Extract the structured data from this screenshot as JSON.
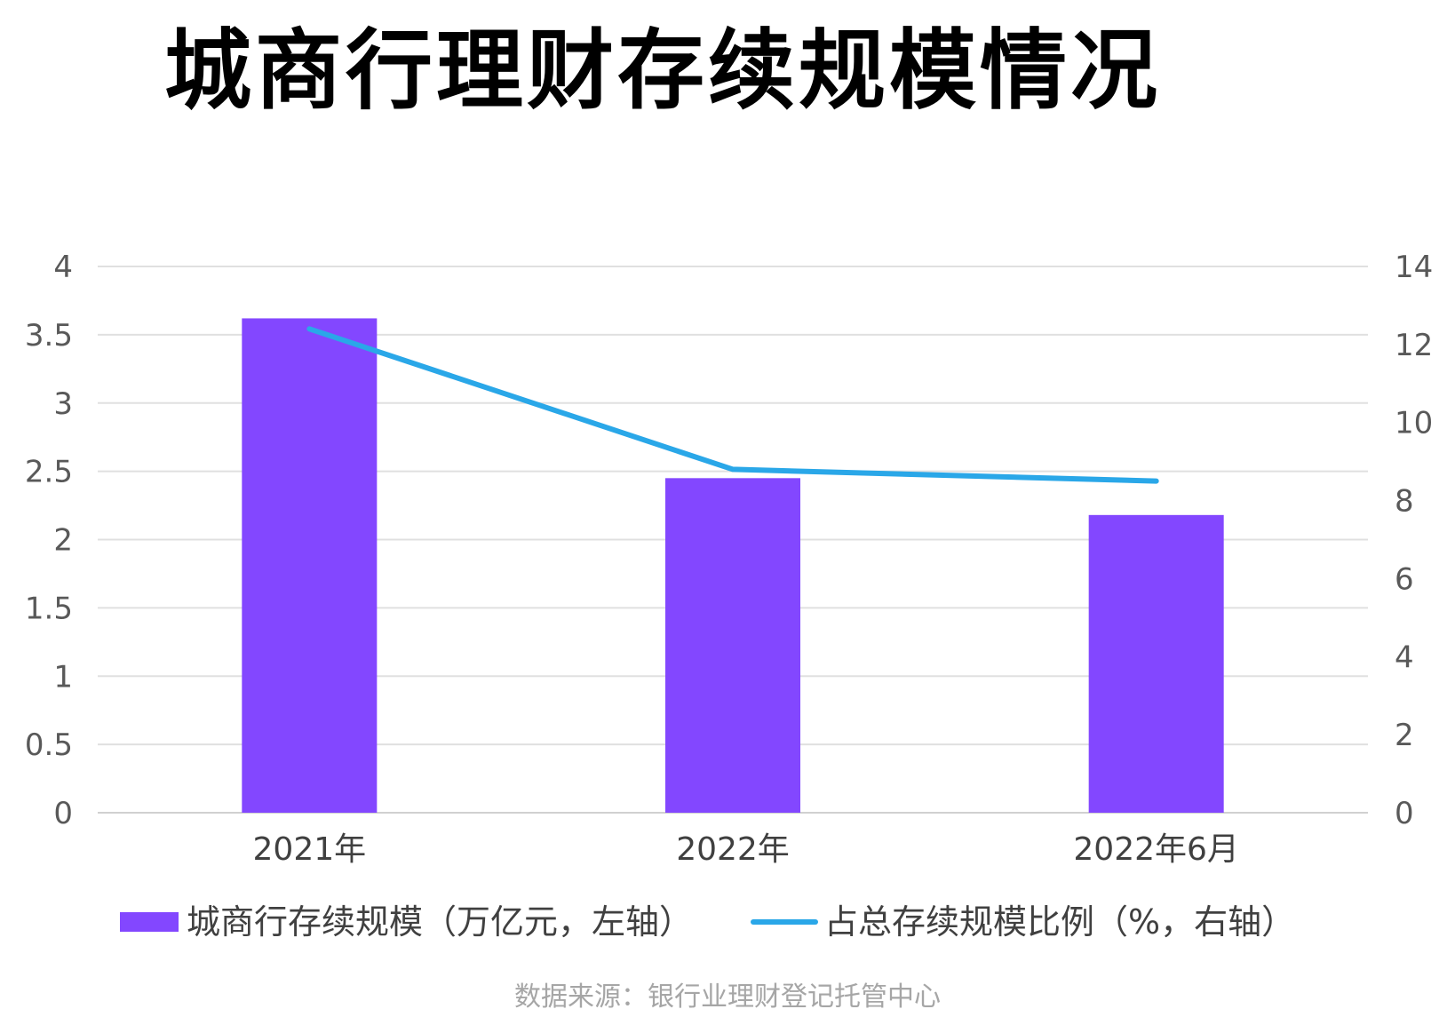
{
  "chart_data": {
    "type": "bar",
    "title": "城商行理财存续规模情况",
    "categories": [
      "2021年",
      "2022年",
      "2022年6月"
    ],
    "series": [
      {
        "name": "城商行存续规模（万亿元，左轴）",
        "type": "bar",
        "axis": "left",
        "values": [
          3.62,
          2.45,
          2.18
        ],
        "color": "#8347ff"
      },
      {
        "name": "占总存续规模比例（%，右轴）",
        "type": "line",
        "axis": "right",
        "values": [
          12.4,
          8.8,
          8.5
        ],
        "color": "#2aa7e8"
      }
    ],
    "y_left": {
      "ylim": [
        0,
        4
      ],
      "ticks": [
        "0",
        "0.5",
        "1",
        "1.5",
        "2",
        "2.5",
        "3",
        "3.5",
        "4"
      ]
    },
    "y_right": {
      "ylim": [
        0,
        14
      ],
      "ticks": [
        "0",
        "2",
        "4",
        "6",
        "8",
        "10",
        "12",
        "14"
      ]
    },
    "xlabel": "",
    "ylabel": "",
    "grid": true,
    "legend_position": "bottom",
    "source": "数据来源：银行业理财登记托管中心"
  }
}
